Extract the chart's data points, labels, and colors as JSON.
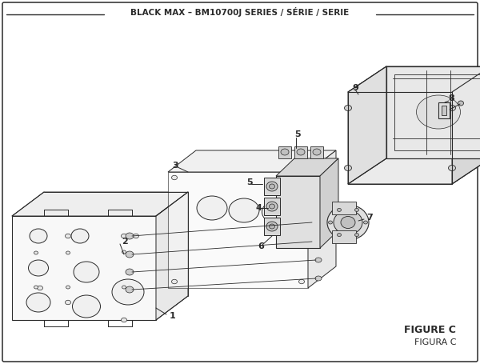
{
  "title": "BLACK MAX – BM10700J SERIES / SÉRIE / SERIE",
  "bg_color": "#ffffff",
  "line_color": "#2a2a2a",
  "figure_label": "FIGURE C",
  "figure_label2": "FIGURA C",
  "title_fontsize": 7.5,
  "fig_fontsize": 9.0,
  "fig2_fontsize": 8.0
}
